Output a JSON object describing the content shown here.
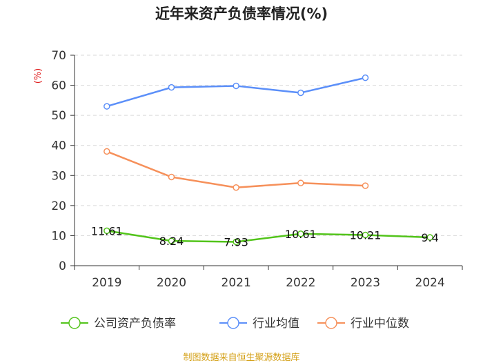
{
  "chart_data": {
    "type": "line",
    "title": "近年来资产负债率情况(%)",
    "y_unit": "(%)",
    "categories": [
      "2019",
      "2020",
      "2021",
      "2022",
      "2023",
      "2024"
    ],
    "ylim": [
      0,
      70
    ],
    "yticks": [
      0,
      10,
      20,
      30,
      40,
      50,
      60,
      70
    ],
    "grid": true,
    "legend_position": "bottom",
    "series": [
      {
        "name": "公司资产负债率",
        "color": "#52c41a",
        "values": [
          11.61,
          8.24,
          7.93,
          10.61,
          10.21,
          9.4
        ],
        "labels": [
          "11.61",
          "8.24",
          "7.93",
          "10.61",
          "10.21",
          "9.4"
        ]
      },
      {
        "name": "行业均值",
        "color": "#5b8ff9",
        "values": [
          53.0,
          59.3,
          59.8,
          57.5,
          62.5,
          null
        ]
      },
      {
        "name": "行业中位数",
        "color": "#f6905a",
        "values": [
          38.0,
          29.5,
          26.0,
          27.5,
          26.6,
          null
        ]
      }
    ]
  },
  "footer": {
    "text": "制图数据来自恒生聚源数据库",
    "color": "#d4a017"
  },
  "unit_color": "#e02020"
}
